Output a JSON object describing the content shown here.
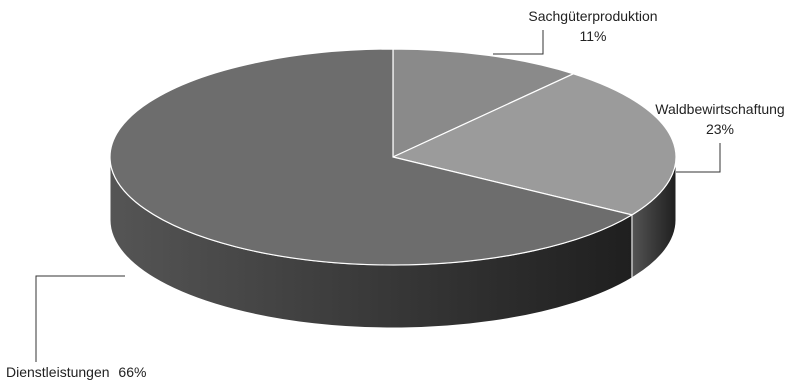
{
  "chart_data": {
    "type": "pie",
    "style": "3d",
    "legend": "none",
    "title": "",
    "categories": [
      "Sachgüterproduktion",
      "Waldbewirtschaftung",
      "Dienstleistungen"
    ],
    "values": [
      11,
      23,
      66
    ],
    "unit": "%",
    "colors": [
      "#8a8a8a",
      "#9b9b9b",
      "#6d6d6d"
    ],
    "side_color": "#3a3a3a",
    "data_labels": [
      {
        "name": "Sachgüterproduktion",
        "value": "11%"
      },
      {
        "name": "Waldbewirtschaftung",
        "value": "23%"
      },
      {
        "name": "Dienstleistungen",
        "value": "66%"
      }
    ]
  }
}
